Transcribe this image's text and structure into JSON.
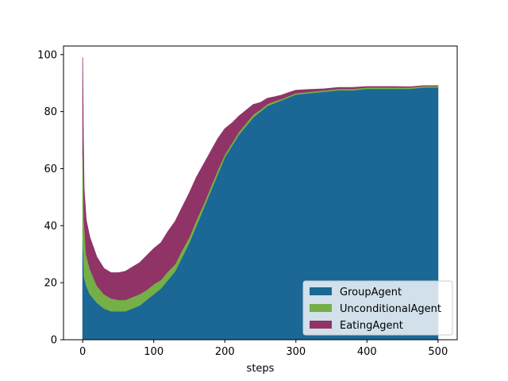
{
  "chart_data": {
    "type": "area",
    "stacked": true,
    "xlabel": "steps",
    "ylabel": "",
    "xlim": [
      -27,
      527
    ],
    "ylim": [
      0,
      103
    ],
    "xticks": [
      0,
      100,
      200,
      300,
      400,
      500
    ],
    "yticks": [
      0,
      20,
      40,
      60,
      80,
      100
    ],
    "grid": false,
    "legend_position": "lower-right",
    "x": [
      0,
      1,
      2,
      5,
      10,
      20,
      30,
      40,
      50,
      60,
      70,
      80,
      90,
      100,
      110,
      120,
      130,
      140,
      150,
      160,
      170,
      180,
      190,
      200,
      210,
      220,
      230,
      240,
      250,
      260,
      270,
      280,
      290,
      300,
      320,
      340,
      360,
      380,
      400,
      420,
      440,
      460,
      480,
      500
    ],
    "series": [
      {
        "name": "GroupAgent",
        "color": "#1b6795",
        "values": [
          33,
          30,
          22,
          19,
          16,
          13,
          11,
          10,
          10,
          10,
          11,
          12,
          14,
          16,
          18,
          21,
          24,
          29,
          34,
          40,
          46,
          52,
          58,
          64,
          68,
          72,
          75,
          78,
          80,
          82,
          83,
          84,
          85,
          86,
          86.5,
          87,
          87.5,
          87.5,
          88,
          88,
          88,
          88,
          88.5,
          88.5
        ]
      },
      {
        "name": "UnconditionalAgent",
        "color": "#74af47",
        "values": [
          33,
          30,
          20,
          11,
          9,
          6,
          5,
          4.5,
          4,
          4,
          4,
          4,
          3.5,
          3.5,
          3,
          3,
          2.5,
          2.5,
          2,
          2,
          1.5,
          1.5,
          1.5,
          1,
          1,
          1,
          1,
          1,
          0.7,
          0.7,
          0.7,
          0.5,
          0.5,
          0.5,
          0.5,
          0.5,
          0.5,
          0.5,
          0.5,
          0.5,
          0.5,
          0.5,
          0.5,
          0.5
        ]
      },
      {
        "name": "EatingAgent",
        "color": "#903468",
        "values": [
          33,
          10,
          11,
          12,
          11,
          10,
          9,
          9,
          9.5,
          10,
          10.5,
          11,
          12,
          12.5,
          13,
          14,
          15,
          15,
          15.5,
          15,
          14,
          12.5,
          11,
          9,
          7,
          5.5,
          4.5,
          3.5,
          2.5,
          2,
          1.5,
          1.3,
          1.2,
          1,
          0.8,
          0.5,
          0.5,
          0.5,
          0.3,
          0.3,
          0.3,
          0.2,
          0.1,
          0.1
        ]
      }
    ]
  }
}
